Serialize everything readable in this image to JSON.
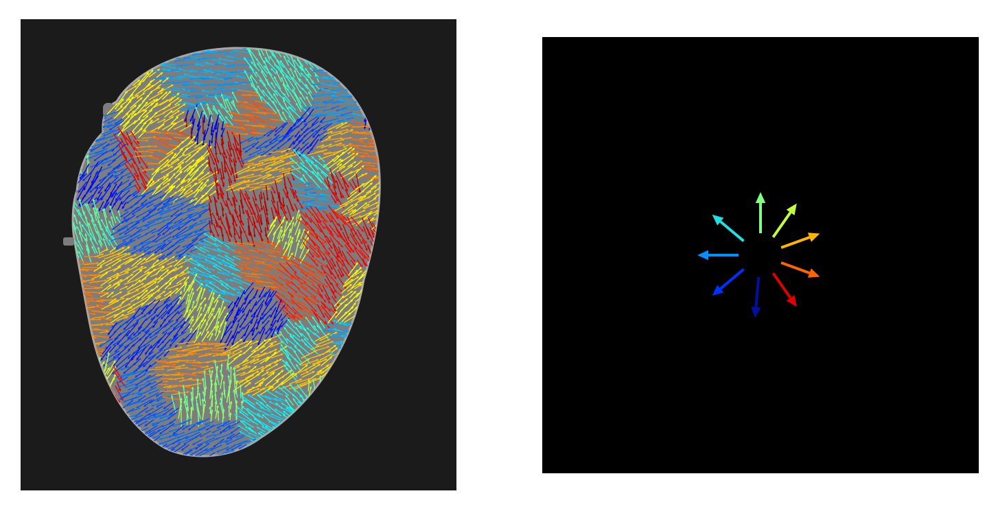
{
  "flow_field_image": {
    "background_color": "#1b1b1b",
    "cell_color": "#7d7d7d",
    "cell_edge_color": "#a8a8a8"
  },
  "direction_legend": {
    "background_color": "#000000",
    "colormap": "jet",
    "arrows": [
      {
        "name": "up",
        "angle_deg": 90,
        "color": "#80ff80"
      },
      {
        "name": "up-right",
        "angle_deg": 55,
        "color": "#c0ff40"
      },
      {
        "name": "right-up",
        "angle_deg": 20,
        "color": "#ffb400"
      },
      {
        "name": "right-down",
        "angle_deg": -20,
        "color": "#ff6400"
      },
      {
        "name": "down-right",
        "angle_deg": -55,
        "color": "#e00000"
      },
      {
        "name": "down",
        "angle_deg": -95,
        "color": "#0010a0"
      },
      {
        "name": "down-left",
        "angle_deg": -140,
        "color": "#0030ff"
      },
      {
        "name": "left",
        "angle_deg": 180,
        "color": "#0090ff"
      },
      {
        "name": "up-left",
        "angle_deg": 140,
        "color": "#20e0e0"
      }
    ]
  }
}
